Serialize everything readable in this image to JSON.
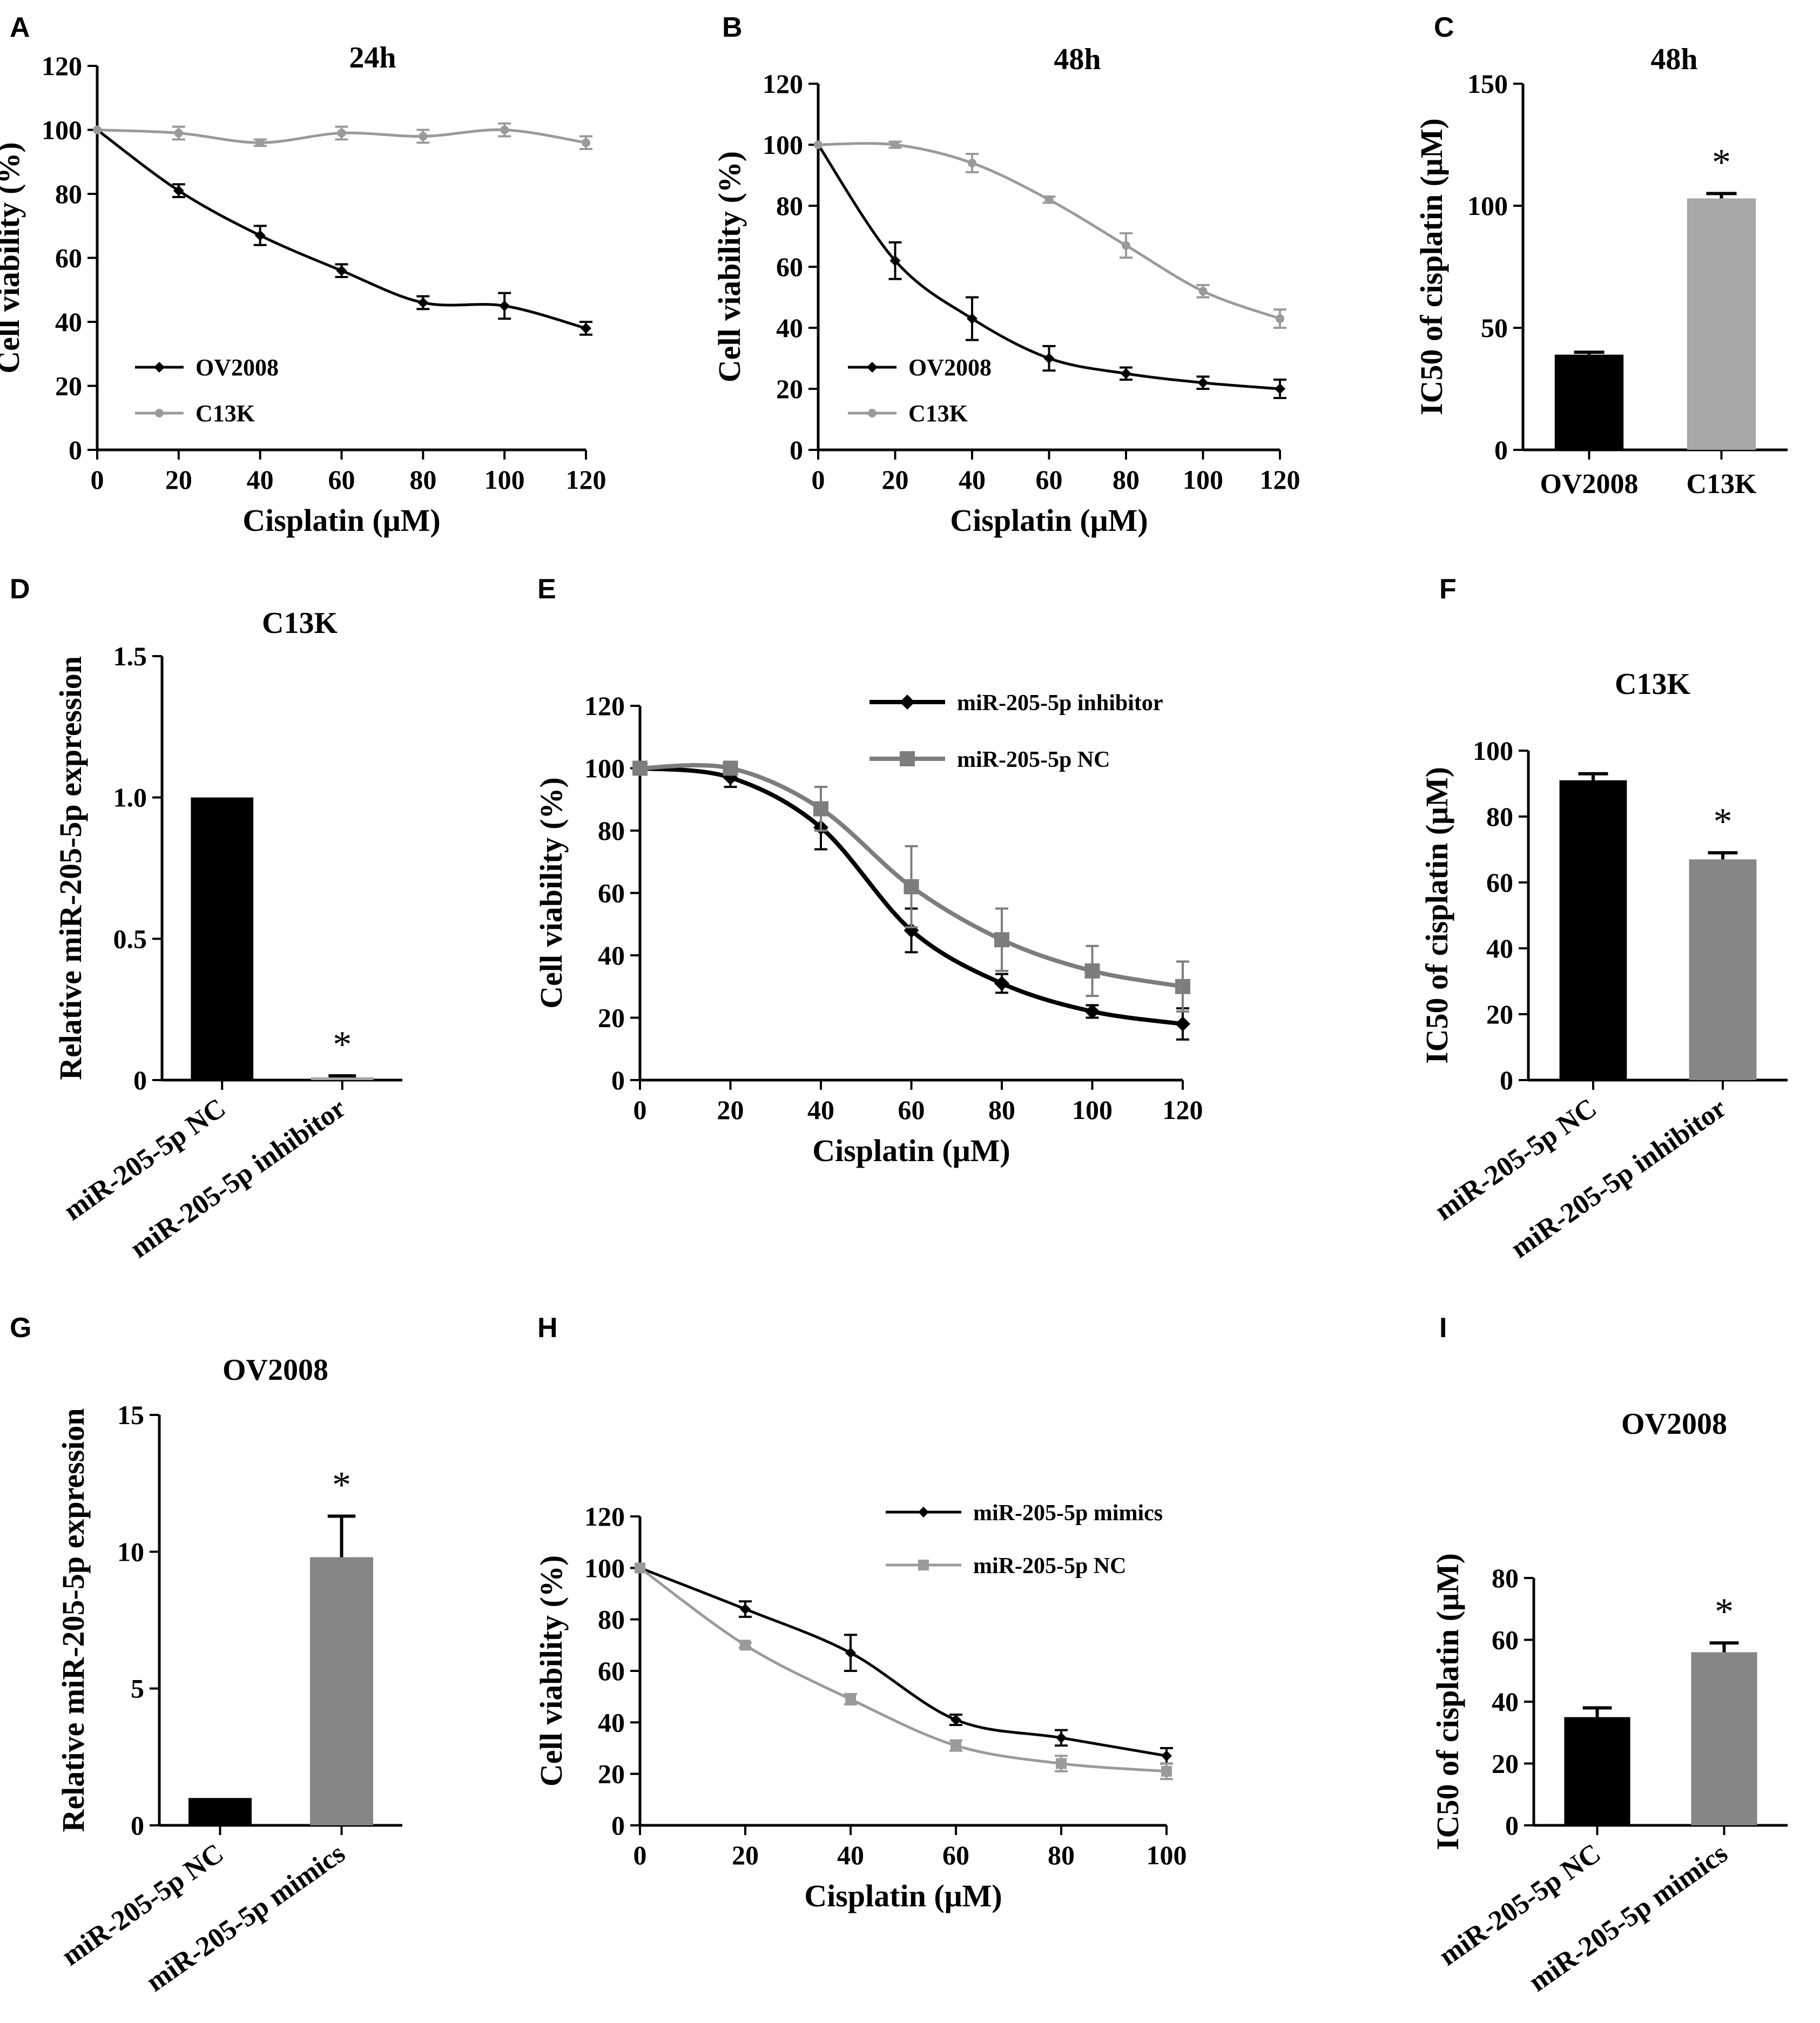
{
  "figure": {
    "panels": [
      {
        "id": "A",
        "letter": "A",
        "title": "24h",
        "xlabel": "Cisplatin (μM)",
        "ylabel": "Cell viability (%)"
      },
      {
        "id": "B",
        "letter": "B",
        "title": "48h",
        "xlabel": "Cisplatin (μM)",
        "ylabel": "Cell viability (%)"
      },
      {
        "id": "C",
        "letter": "C",
        "title": "48h",
        "xlabel": "",
        "ylabel": "IC50 of cisplatin (μM)"
      },
      {
        "id": "D",
        "letter": "D",
        "title": "C13K",
        "xlabel": "",
        "ylabel": "Relative miR-205-5p expression"
      },
      {
        "id": "E",
        "letter": "E",
        "title": "",
        "xlabel": "Cisplatin (μM)",
        "ylabel": "Cell viability (%)"
      },
      {
        "id": "F",
        "letter": "F",
        "title": "C13K",
        "xlabel": "",
        "ylabel": "IC50 of cisplatin (μM)"
      },
      {
        "id": "G",
        "letter": "G",
        "title": "OV2008",
        "xlabel": "",
        "ylabel": "Relative miR-205-5p expression"
      },
      {
        "id": "H",
        "letter": "H",
        "title": "",
        "xlabel": "Cisplatin (μM)",
        "ylabel": "Cell viability (%)"
      },
      {
        "id": "I",
        "letter": "I",
        "title": "OV2008",
        "xlabel": "",
        "ylabel": "IC50 of cisplatin (μM)"
      }
    ]
  },
  "colors": {
    "black": "#000000",
    "gray_light": "#9a9a9a",
    "gray_mid": "#7d7d7d",
    "gray_bar_light": "#a7a7a9",
    "gray_bar_mid": "#868686"
  },
  "chart_data": [
    {
      "panel": "A",
      "type": "line",
      "title": "24h",
      "xlabel": "Cisplatin (μM)",
      "ylabel": "Cell viability (%)",
      "x": [
        0,
        20,
        40,
        60,
        80,
        100,
        120
      ],
      "xticks": [
        "0",
        "20",
        "40",
        "60",
        "80",
        "100",
        "120"
      ],
      "yticks": [
        "0",
        "20",
        "40",
        "60",
        "80",
        "100",
        "120"
      ],
      "xlim": [
        0,
        120
      ],
      "ylim": [
        0,
        120
      ],
      "legend_position": "bottom-left",
      "series": [
        {
          "name": "OV2008",
          "color": "#000000",
          "marker": "diamond",
          "values": [
            100,
            81,
            67,
            56,
            46,
            45,
            38
          ],
          "errors": [
            0,
            2,
            3,
            2,
            2,
            4,
            2
          ]
        },
        {
          "name": "C13K",
          "color": "#9a9a9a",
          "marker": "circle",
          "values": [
            100,
            99,
            96,
            99,
            98,
            100,
            96
          ],
          "errors": [
            0,
            2,
            1,
            2,
            2,
            2,
            2
          ]
        }
      ]
    },
    {
      "panel": "B",
      "type": "line",
      "title": "48h",
      "xlabel": "Cisplatin (μM)",
      "ylabel": "Cell viability (%)",
      "x": [
        0,
        20,
        40,
        60,
        80,
        100,
        120
      ],
      "xticks": [
        "0",
        "20",
        "40",
        "60",
        "80",
        "100",
        "120"
      ],
      "yticks": [
        "0",
        "20",
        "40",
        "60",
        "80",
        "100",
        "120"
      ],
      "xlim": [
        0,
        120
      ],
      "ylim": [
        0,
        120
      ],
      "legend_position": "bottom-left",
      "series": [
        {
          "name": "OV2008",
          "color": "#000000",
          "marker": "diamond",
          "values": [
            100,
            62,
            43,
            30,
            25,
            22,
            20
          ],
          "errors": [
            0,
            6,
            7,
            4,
            2,
            2,
            3
          ]
        },
        {
          "name": "C13K",
          "color": "#9a9a9a",
          "marker": "circle",
          "values": [
            100,
            100,
            94,
            82,
            67,
            52,
            43
          ],
          "errors": [
            0,
            1,
            3,
            1,
            4,
            2,
            3
          ]
        }
      ]
    },
    {
      "panel": "C",
      "type": "bar",
      "title": "48h",
      "xlabel": "",
      "ylabel": "IC50 of cisplatin (μM)",
      "categories": [
        "OV2008",
        "C13K"
      ],
      "values": [
        39,
        103
      ],
      "errors": [
        1,
        2
      ],
      "colors": [
        "#000000",
        "#a7a7a9"
      ],
      "significance": [
        "",
        "*"
      ],
      "yticks": [
        "0",
        "50",
        "100",
        "150"
      ],
      "ylim": [
        0,
        150
      ]
    },
    {
      "panel": "D",
      "type": "bar",
      "title": "C13K",
      "xlabel": "",
      "ylabel": "Relative miR-205-5p expression",
      "categories": [
        "miR-205-5p NC",
        "miR-205-5p inhibitor"
      ],
      "values": [
        1.0,
        0.01
      ],
      "errors": [
        0,
        0.005
      ],
      "colors": [
        "#000000",
        "#a7a7a9"
      ],
      "significance": [
        "",
        "*"
      ],
      "yticks": [
        "0",
        "0.5",
        "1.0",
        "1.5"
      ],
      "ylim": [
        0,
        1.5
      ]
    },
    {
      "panel": "E",
      "type": "line",
      "title": "",
      "xlabel": "Cisplatin (μM)",
      "ylabel": "Cell viability (%)",
      "x": [
        0,
        20,
        40,
        60,
        80,
        100,
        120
      ],
      "xticks": [
        "0",
        "20",
        "40",
        "60",
        "80",
        "100",
        "120"
      ],
      "yticks": [
        "0",
        "20",
        "40",
        "60",
        "80",
        "100",
        "120"
      ],
      "xlim": [
        0,
        120
      ],
      "ylim": [
        0,
        120
      ],
      "legend_position": "top-right",
      "series": [
        {
          "name": "miR-205-5p inhibitor",
          "color": "#000000",
          "marker": "diamond",
          "values": [
            100,
            97,
            81,
            48,
            31,
            22,
            18
          ],
          "errors": [
            0,
            3,
            7,
            7,
            3,
            2,
            5
          ]
        },
        {
          "name": "miR-205-5p NC",
          "color": "#7d7d7d",
          "marker": "square",
          "values": [
            100,
            100,
            87,
            62,
            45,
            35,
            30
          ],
          "errors": [
            0,
            1,
            7,
            13,
            10,
            8,
            8
          ]
        }
      ]
    },
    {
      "panel": "F",
      "type": "bar",
      "title": "C13K",
      "xlabel": "",
      "ylabel": "IC50 of cisplatin (μM)",
      "categories": [
        "miR-205-5p NC",
        "miR-205-5p inhibitor"
      ],
      "values": [
        91,
        67
      ],
      "errors": [
        2,
        2
      ],
      "colors": [
        "#000000",
        "#868686"
      ],
      "significance": [
        "",
        "*"
      ],
      "yticks": [
        "0",
        "20",
        "40",
        "60",
        "80",
        "100"
      ],
      "ylim": [
        0,
        100
      ]
    },
    {
      "panel": "G",
      "type": "bar",
      "title": "OV2008",
      "xlabel": "",
      "ylabel": "Relative miR-205-5p expression",
      "categories": [
        "miR-205-5p NC",
        "miR-205-5p mimics"
      ],
      "values": [
        1.0,
        9.8
      ],
      "errors": [
        0,
        1.5
      ],
      "colors": [
        "#000000",
        "#868686"
      ],
      "significance": [
        "",
        "*"
      ],
      "yticks": [
        "0",
        "5",
        "10",
        "15"
      ],
      "ylim": [
        0,
        15
      ]
    },
    {
      "panel": "H",
      "type": "line",
      "title": "",
      "xlabel": "Cisplatin (μM)",
      "ylabel": "Cell viability (%)",
      "x": [
        0,
        20,
        40,
        60,
        80,
        100
      ],
      "xticks": [
        "0",
        "20",
        "40",
        "60",
        "80",
        "100"
      ],
      "yticks": [
        "0",
        "20",
        "40",
        "60",
        "80",
        "100",
        "120"
      ],
      "xlim": [
        0,
        100
      ],
      "ylim": [
        0,
        120
      ],
      "legend_position": "top-right",
      "series": [
        {
          "name": "miR-205-5p mimics",
          "color": "#000000",
          "marker": "diamond",
          "values": [
            100,
            84,
            67,
            41,
            34,
            27
          ],
          "errors": [
            0,
            3,
            7,
            2,
            3,
            3
          ]
        },
        {
          "name": "miR-205-5p NC",
          "color": "#9a9a9a",
          "marker": "square",
          "values": [
            100,
            70,
            49,
            31,
            24,
            21
          ],
          "errors": [
            0,
            1,
            2,
            2,
            3,
            3
          ]
        }
      ]
    },
    {
      "panel": "I",
      "type": "bar",
      "title": "OV2008",
      "xlabel": "",
      "ylabel": "IC50 of cisplatin (μM)",
      "categories": [
        "miR-205-5p NC",
        "miR-205-5p mimics"
      ],
      "values": [
        35,
        56
      ],
      "errors": [
        3,
        3
      ],
      "colors": [
        "#000000",
        "#868686"
      ],
      "significance": [
        "",
        "*"
      ],
      "yticks": [
        "0",
        "20",
        "40",
        "60",
        "80"
      ],
      "ylim": [
        0,
        80
      ]
    }
  ]
}
